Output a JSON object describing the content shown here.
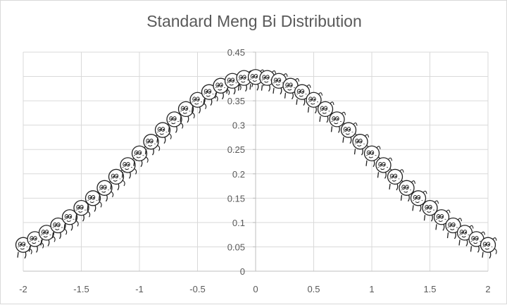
{
  "chart_data": {
    "type": "scatter",
    "title": "Standard Meng Bi Distribution",
    "xlabel": "",
    "ylabel": "",
    "xlim": [
      -2,
      2
    ],
    "ylim": [
      0,
      0.45
    ],
    "x_ticks": [
      "-2",
      "-1.5",
      "-1",
      "-0.5",
      "0",
      "0.5",
      "1",
      "1.5",
      "2"
    ],
    "y_ticks": [
      "0",
      "0.05",
      "0.1",
      "0.15",
      "0.2",
      "0.25",
      "0.3",
      "0.35",
      "0.4",
      "0.45"
    ],
    "grid": true,
    "legend": false,
    "marker": "cartoon-face-icon",
    "series": [
      {
        "x": [
          -2.0,
          -1.9,
          -1.8,
          -1.7,
          -1.6,
          -1.5,
          -1.4,
          -1.3,
          -1.2,
          -1.1,
          -1.0,
          -0.9,
          -0.8,
          -0.7,
          -0.6,
          -0.5,
          -0.4,
          -0.3,
          -0.2,
          -0.1,
          0.0,
          0.1,
          0.2,
          0.3,
          0.4,
          0.5,
          0.6,
          0.7,
          0.8,
          0.9,
          1.0,
          1.1,
          1.2,
          1.3,
          1.4,
          1.5,
          1.6,
          1.7,
          1.8,
          1.9,
          2.0
        ],
        "y": [
          0.054,
          0.066,
          0.079,
          0.094,
          0.111,
          0.13,
          0.15,
          0.171,
          0.194,
          0.218,
          0.242,
          0.266,
          0.29,
          0.312,
          0.333,
          0.352,
          0.368,
          0.381,
          0.391,
          0.397,
          0.399,
          0.397,
          0.391,
          0.381,
          0.368,
          0.352,
          0.333,
          0.312,
          0.29,
          0.266,
          0.242,
          0.218,
          0.194,
          0.171,
          0.15,
          0.13,
          0.111,
          0.094,
          0.079,
          0.066,
          0.054
        ]
      }
    ]
  }
}
